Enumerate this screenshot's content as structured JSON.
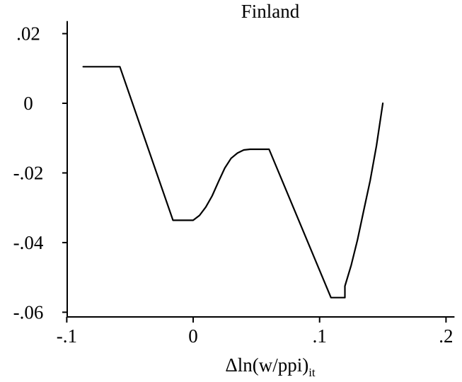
{
  "chart_data": {
    "type": "line",
    "title": "Finland",
    "xlabel": {
      "main": "Δln(w/ppi)",
      "subscript": "it"
    },
    "ylabel": "",
    "xlim": [
      -0.11,
      0.2
    ],
    "ylim": [
      -0.061,
      0.022
    ],
    "xticks": [
      {
        "value": -0.1,
        "label": "-.1"
      },
      {
        "value": 0,
        "label": "0"
      },
      {
        "value": 0.1,
        "label": ".1"
      },
      {
        "value": 0.2,
        "label": ".2"
      }
    ],
    "yticks": [
      {
        "value": 0.02,
        "label": ".02"
      },
      {
        "value": 0,
        "label": "0"
      },
      {
        "value": -0.02,
        "label": "-.02"
      },
      {
        "value": -0.04,
        "label": "-.04"
      },
      {
        "value": -0.06,
        "label": "-.06"
      }
    ],
    "grid": false,
    "legend": "none",
    "line_color": "#000000",
    "series": [
      {
        "x": [
          -0.087,
          -0.058,
          -0.016,
          0.0,
          0.005,
          0.01,
          0.015,
          0.02,
          0.025,
          0.03,
          0.035,
          0.04,
          0.045,
          0.05,
          0.06,
          0.109,
          0.12,
          0.12,
          0.125,
          0.13,
          0.135,
          0.14,
          0.145,
          0.15
        ],
        "y": [
          0.0105,
          0.0105,
          -0.0336,
          -0.0336,
          -0.0322,
          -0.0298,
          -0.0266,
          -0.0225,
          -0.0186,
          -0.0158,
          -0.0143,
          -0.0134,
          -0.0132,
          -0.0132,
          -0.0132,
          -0.0558,
          -0.0558,
          -0.0525,
          -0.0465,
          -0.0392,
          -0.0306,
          -0.0222,
          -0.0122,
          0.0
        ]
      }
    ]
  }
}
